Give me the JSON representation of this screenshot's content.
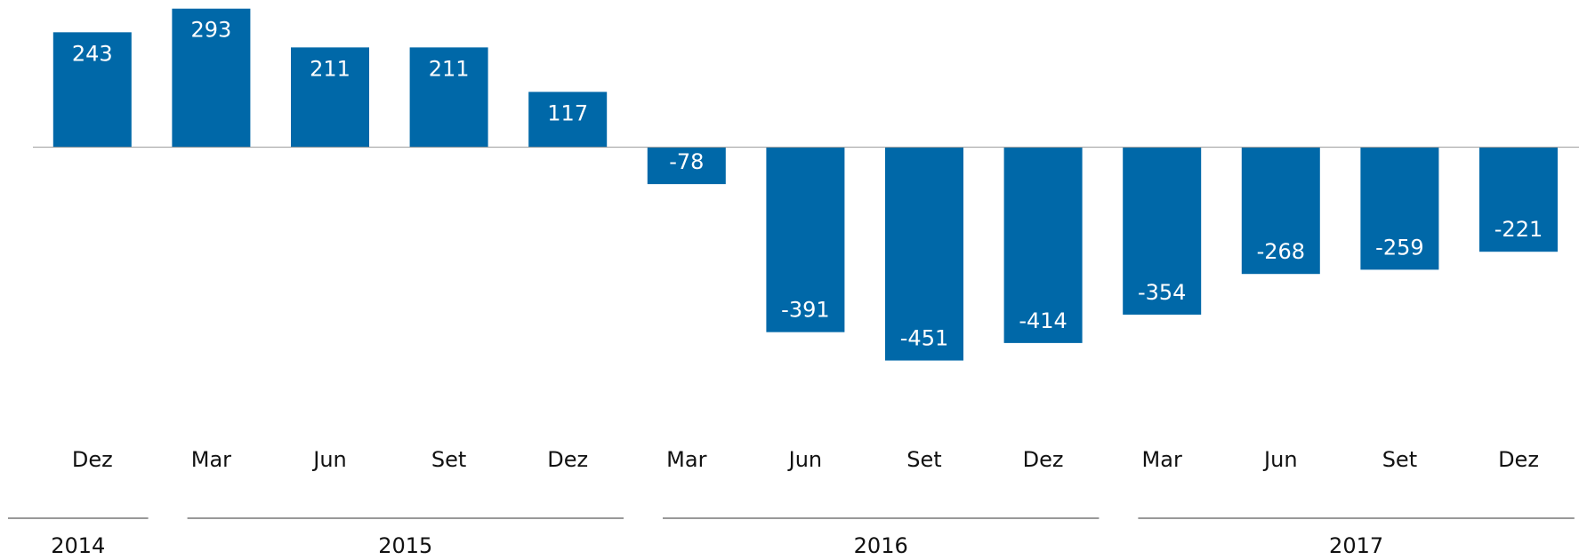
{
  "chart_data": {
    "type": "bar",
    "categories": [
      "Dez",
      "Mar",
      "Jun",
      "Set",
      "Dez",
      "Mar",
      "Jun",
      "Set",
      "Dez",
      "Mar",
      "Jun",
      "Set",
      "Dez"
    ],
    "values": [
      243,
      293,
      211,
      211,
      117,
      -78,
      -391,
      -451,
      -414,
      -354,
      -268,
      -259,
      -221
    ],
    "groups": [
      {
        "name": "2014",
        "span": 1
      },
      {
        "name": "2015",
        "span": 4
      },
      {
        "name": "2016",
        "span": 4
      },
      {
        "name": "2017",
        "span": 4
      }
    ],
    "color": "#0068a8",
    "ylim": [
      -480,
      300
    ]
  }
}
